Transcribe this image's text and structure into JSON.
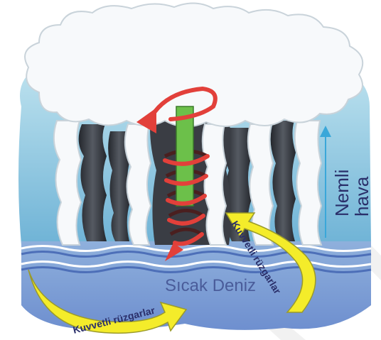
{
  "labels": {
    "humid_air": [
      "Nemli",
      "hava"
    ],
    "warm_sea": "Sıcak Deniz",
    "strong_winds_bottom": "Kuvvetli rüzgarlar",
    "strong_winds_right": "Kuvvetli rüzgarlar"
  },
  "colors": {
    "sky_top": "#bfe3ef",
    "sky_bottom": "#6fb3d6",
    "sea_top": "#8fb0dc",
    "sea_bottom": "#6e8fcf",
    "cloud": "#f7f9fb",
    "cloud_shadow": "#c9d3da",
    "dark_column": "#3c3f46",
    "spiral_red": "#e2403a",
    "spiral_dark": "#4a1f1f",
    "updraft_green": "#6cc04a",
    "wind_yellow": "#f4ec2a",
    "wind_outline": "#9a9a2a",
    "humid_arrow": "#3aa7d9",
    "text_dark": "#2a2f6a",
    "sea_label": "#4a5c9a",
    "watermark": "#e6e6e6"
  },
  "icons": {
    "spiral": "spiral-arrow-icon",
    "updraft": "up-arrow-icon",
    "wind": "curved-arrow-icon"
  }
}
